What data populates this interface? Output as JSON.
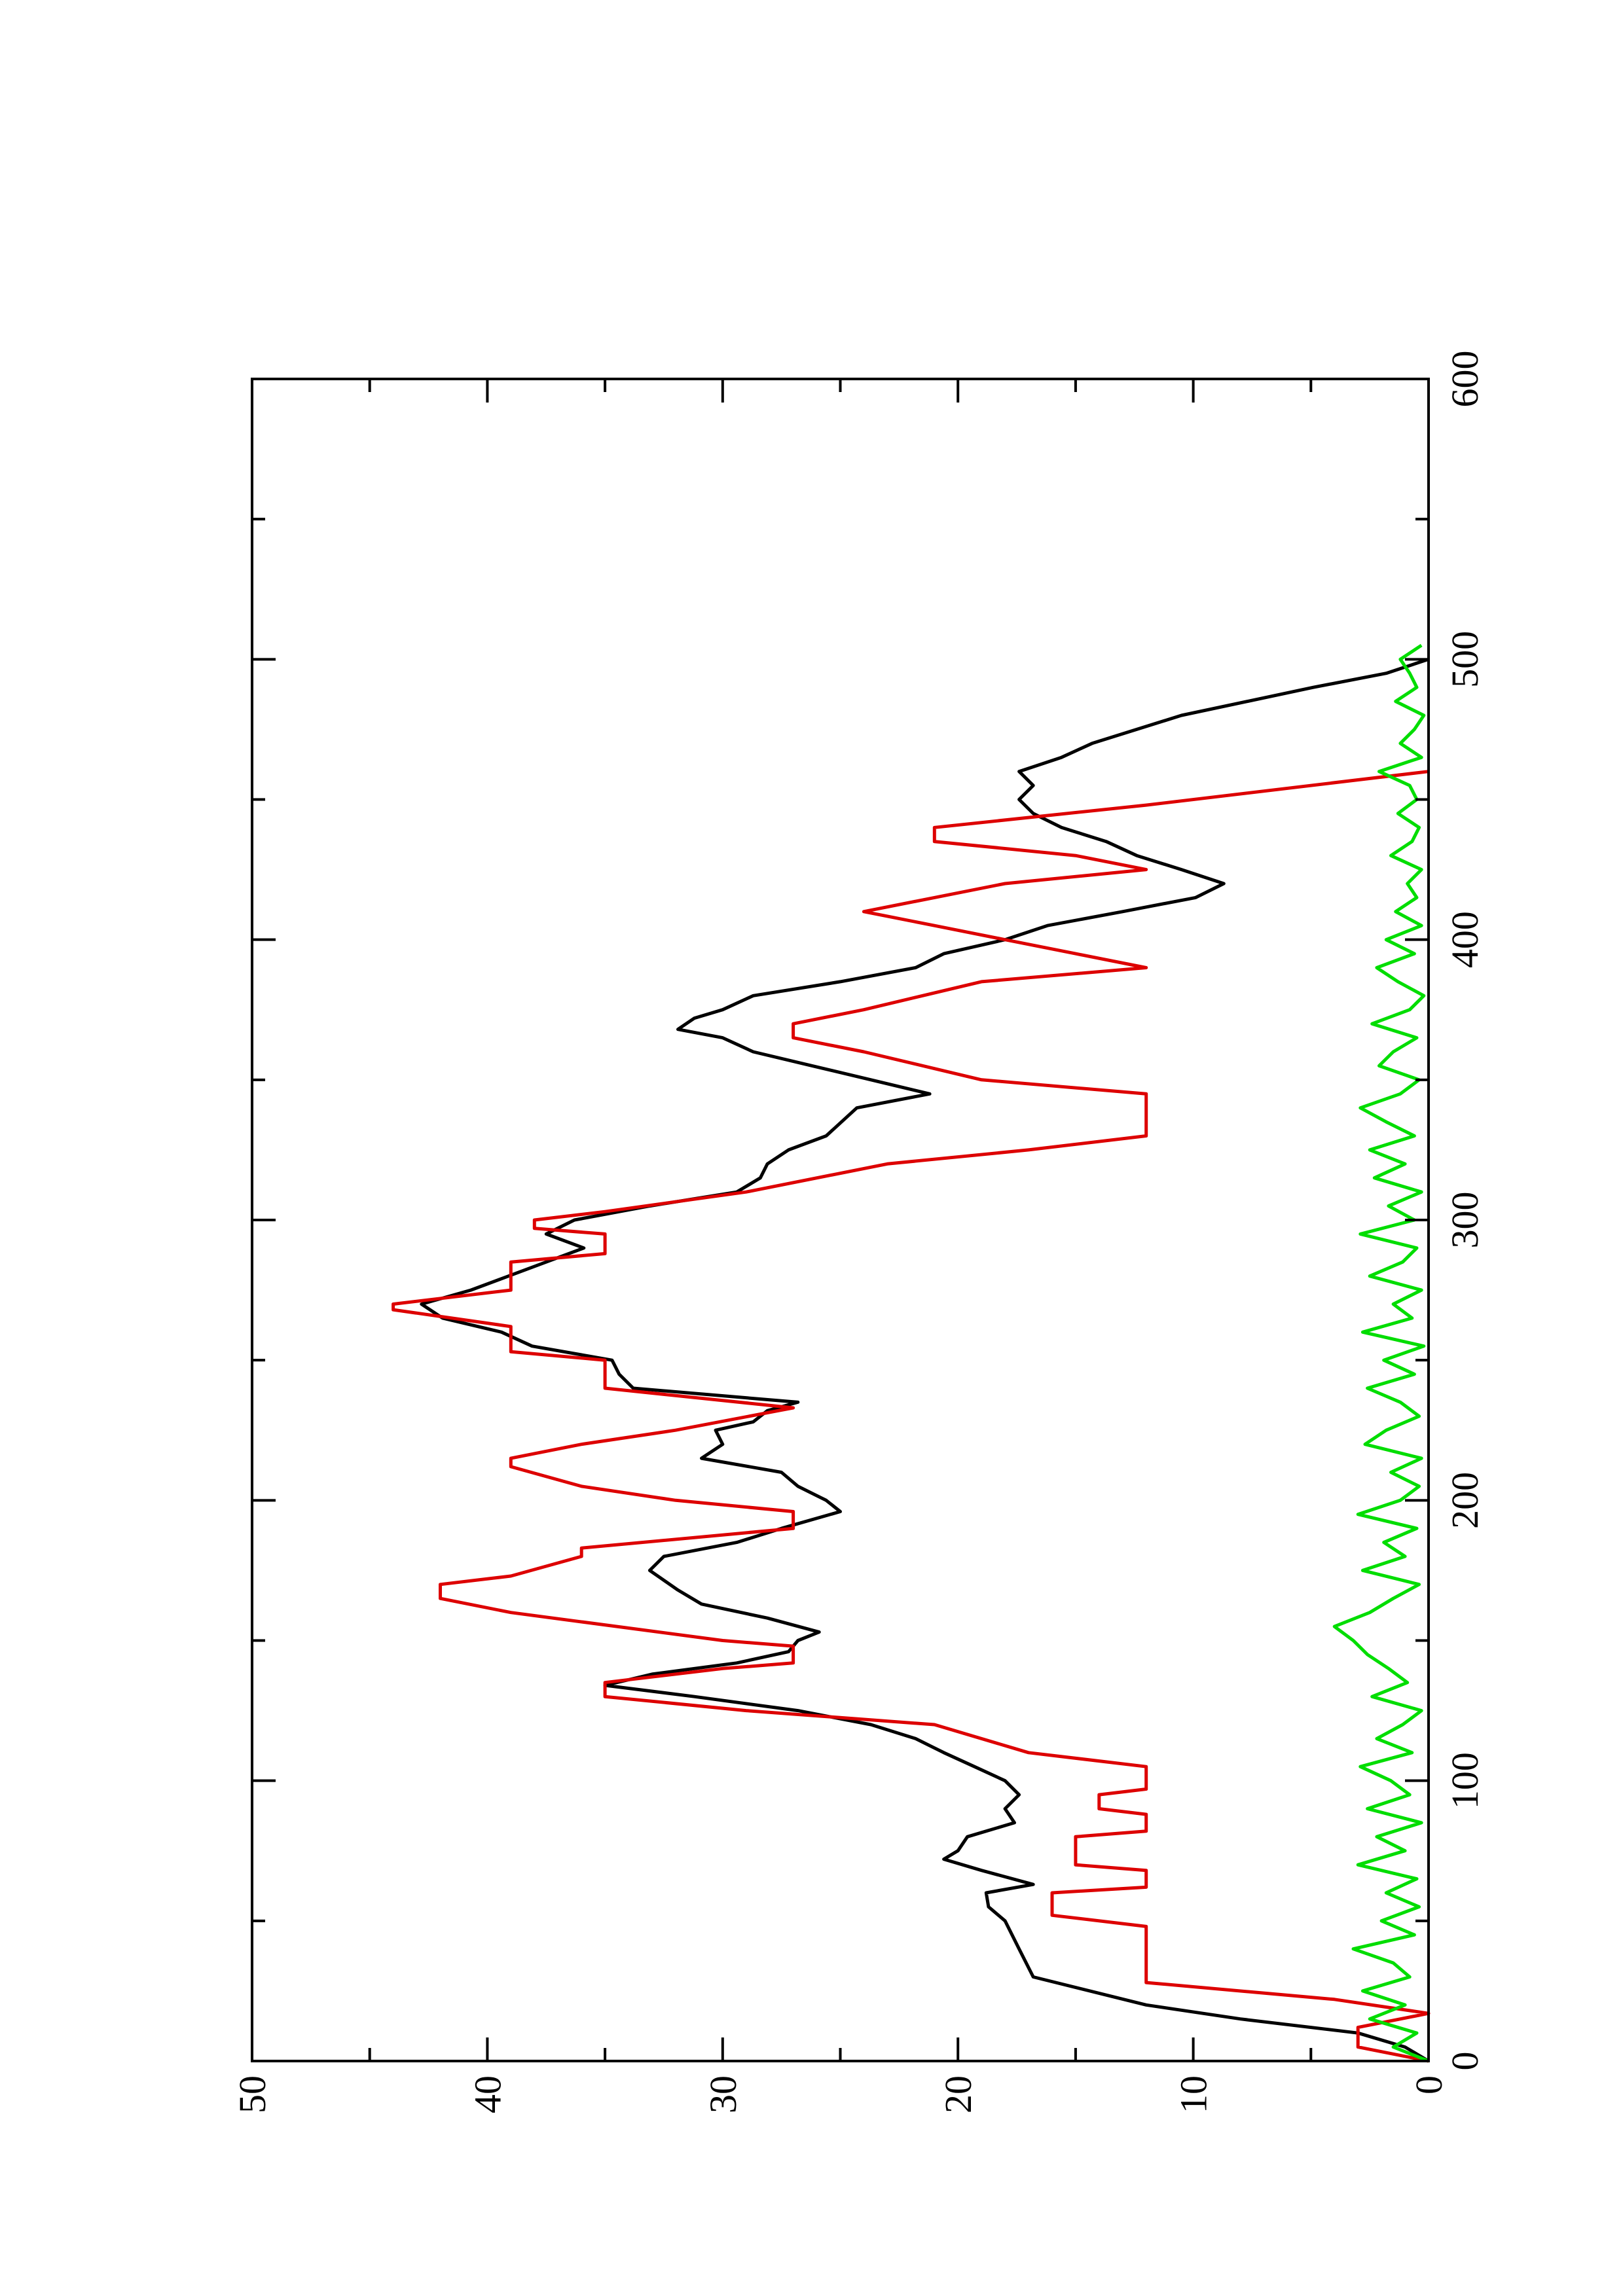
{
  "chart_data": {
    "type": "line",
    "xlim": [
      0,
      600
    ],
    "xticks": [
      0,
      100,
      200,
      300,
      400,
      500,
      600
    ],
    "xminorticks": [
      50,
      150,
      250,
      350,
      450,
      550
    ],
    "ylim": [
      0,
      50
    ],
    "yticks": [
      0,
      10,
      20,
      30,
      40,
      50
    ],
    "yminorticks": [
      5,
      15,
      25,
      35,
      45
    ],
    "series": [
      {
        "color": "#000000",
        "x": [
          0,
          5,
          10,
          15,
          20,
          30,
          40,
          50,
          55,
          60,
          63,
          68,
          72,
          75,
          80,
          85,
          90,
          95,
          100,
          105,
          110,
          115,
          120,
          125,
          130,
          134,
          138,
          142,
          146,
          150,
          153,
          158,
          163,
          168,
          175,
          180,
          185,
          190,
          196,
          200,
          205,
          210,
          215,
          220,
          225,
          228,
          232,
          235,
          240,
          245,
          250,
          255,
          260,
          265,
          270,
          275,
          280,
          285,
          290,
          295,
          300,
          305,
          310,
          315,
          320,
          325,
          330,
          340,
          345,
          350,
          355,
          360,
          365,
          368,
          372,
          375,
          380,
          385,
          390,
          395,
          400,
          405,
          410,
          415,
          420,
          425,
          430,
          435,
          440,
          445,
          450,
          455,
          460,
          465,
          470,
          480,
          490,
          495,
          500
        ],
        "values": [
          0,
          1,
          3,
          8,
          12,
          16.8,
          17.4,
          18,
          18.7,
          18.8,
          16.8,
          19,
          20.6,
          20,
          19.6,
          17.6,
          18,
          17.4,
          18,
          19.3,
          20.6,
          21.8,
          23.7,
          26.8,
          31.2,
          35,
          33,
          29.4,
          27.2,
          26.8,
          25.9,
          28.1,
          30.9,
          31.9,
          33.1,
          32.5,
          29.4,
          27.5,
          25,
          25.6,
          26.8,
          27.5,
          30.9,
          30,
          30.3,
          28.7,
          28.1,
          26.8,
          33.8,
          34.4,
          34.7,
          38.1,
          39.4,
          41.9,
          42.8,
          40.7,
          39.1,
          37.5,
          35.9,
          37.5,
          36.3,
          33.1,
          29.4,
          28.4,
          28.1,
          27.2,
          25.6,
          24.3,
          21.2,
          23.7,
          26.2,
          28.7,
          30,
          31.9,
          31.2,
          30,
          28.7,
          25,
          21.8,
          20.6,
          18,
          16.2,
          13,
          9.9,
          8.7,
          10.5,
          12.4,
          13.7,
          15.6,
          16.8,
          17.4,
          16.8,
          17.4,
          15.6,
          14.3,
          10.5,
          4.9,
          1.8,
          0
        ]
      },
      {
        "color": "#dd0000",
        "x": [
          0,
          5,
          12,
          17,
          22,
          28,
          48,
          52,
          60,
          62,
          68,
          70,
          80,
          82,
          88,
          90,
          95,
          97,
          105,
          110,
          120,
          125,
          130,
          135,
          140,
          142,
          148,
          150,
          160,
          165,
          170,
          173,
          180,
          183,
          190,
          196,
          200,
          205,
          212,
          215,
          220,
          225,
          233,
          240,
          250,
          253,
          262,
          268,
          270,
          275,
          285,
          288,
          295,
          297,
          300,
          303,
          310,
          320,
          325,
          330,
          345,
          350,
          360,
          365,
          370,
          375,
          385,
          390,
          395,
          400,
          405,
          410,
          415,
          420,
          425,
          430,
          435,
          440,
          448,
          460
        ],
        "values": [
          0,
          3,
          3,
          0,
          4,
          12,
          12,
          16,
          16,
          12,
          12,
          15,
          15,
          12,
          12,
          14,
          14,
          12,
          12,
          17,
          21,
          29,
          35,
          35,
          30,
          27,
          27,
          30,
          39,
          42,
          42,
          39,
          36,
          36,
          27,
          27,
          32,
          36,
          39,
          39,
          36,
          32,
          27,
          35,
          35,
          39,
          39,
          44,
          44,
          39,
          39,
          35,
          35,
          38,
          38,
          35,
          29,
          23,
          17,
          12,
          12,
          19,
          24,
          27,
          27,
          24,
          19,
          12,
          15,
          18,
          21,
          24,
          21,
          18,
          12,
          15,
          21,
          21,
          12,
          0
        ]
      },
      {
        "color": "#00dd00",
        "x": [
          0,
          5,
          10,
          15,
          20,
          25,
          30,
          35,
          40,
          45,
          50,
          55,
          60,
          65,
          70,
          75,
          80,
          85,
          90,
          95,
          100,
          105,
          110,
          115,
          120,
          125,
          130,
          135,
          140,
          145,
          150,
          155,
          160,
          165,
          170,
          175,
          180,
          185,
          190,
          195,
          200,
          205,
          210,
          215,
          220,
          225,
          230,
          235,
          240,
          245,
          250,
          255,
          260,
          265,
          270,
          275,
          280,
          285,
          290,
          295,
          300,
          305,
          310,
          315,
          320,
          325,
          330,
          335,
          340,
          345,
          350,
          355,
          360,
          365,
          370,
          375,
          380,
          385,
          390,
          395,
          400,
          405,
          410,
          415,
          420,
          425,
          430,
          435,
          440,
          445,
          450,
          455,
          460,
          465,
          470,
          475,
          480,
          485,
          490,
          495,
          500,
          505
        ],
        "values": [
          0,
          1.5,
          0.5,
          2.5,
          1,
          2.8,
          0.8,
          1.5,
          3.2,
          0.6,
          2,
          0.4,
          1.8,
          0.5,
          3,
          1,
          2.2,
          0.3,
          2.6,
          0.8,
          1.6,
          2.9,
          0.7,
          2.2,
          1.1,
          0.3,
          2.4,
          0.9,
          1.7,
          2.6,
          3.2,
          4,
          2.5,
          1.5,
          0.4,
          2.8,
          1,
          1.9,
          0.5,
          3,
          1.2,
          0.4,
          1.6,
          0.3,
          2.7,
          1.8,
          0.4,
          1.2,
          2.6,
          0.6,
          1.9,
          0.2,
          2.8,
          0.7,
          1.5,
          0.3,
          2.5,
          1.1,
          0.5,
          2.9,
          0.6,
          1.7,
          0.3,
          2.3,
          1,
          2.5,
          0.6,
          1.8,
          2.9,
          1.2,
          0.4,
          2.1,
          1.5,
          0.5,
          2.4,
          0.8,
          0.2,
          1.3,
          2.2,
          0.6,
          1.8,
          0.3,
          1.4,
          0.5,
          0.9,
          0.3,
          1.6,
          0.7,
          0.4,
          1.3,
          0.5,
          0.8,
          2.1,
          0.3,
          1.2,
          0.6,
          0.2,
          1.4,
          0.5,
          0.8,
          1.2,
          0.3
        ]
      }
    ]
  }
}
